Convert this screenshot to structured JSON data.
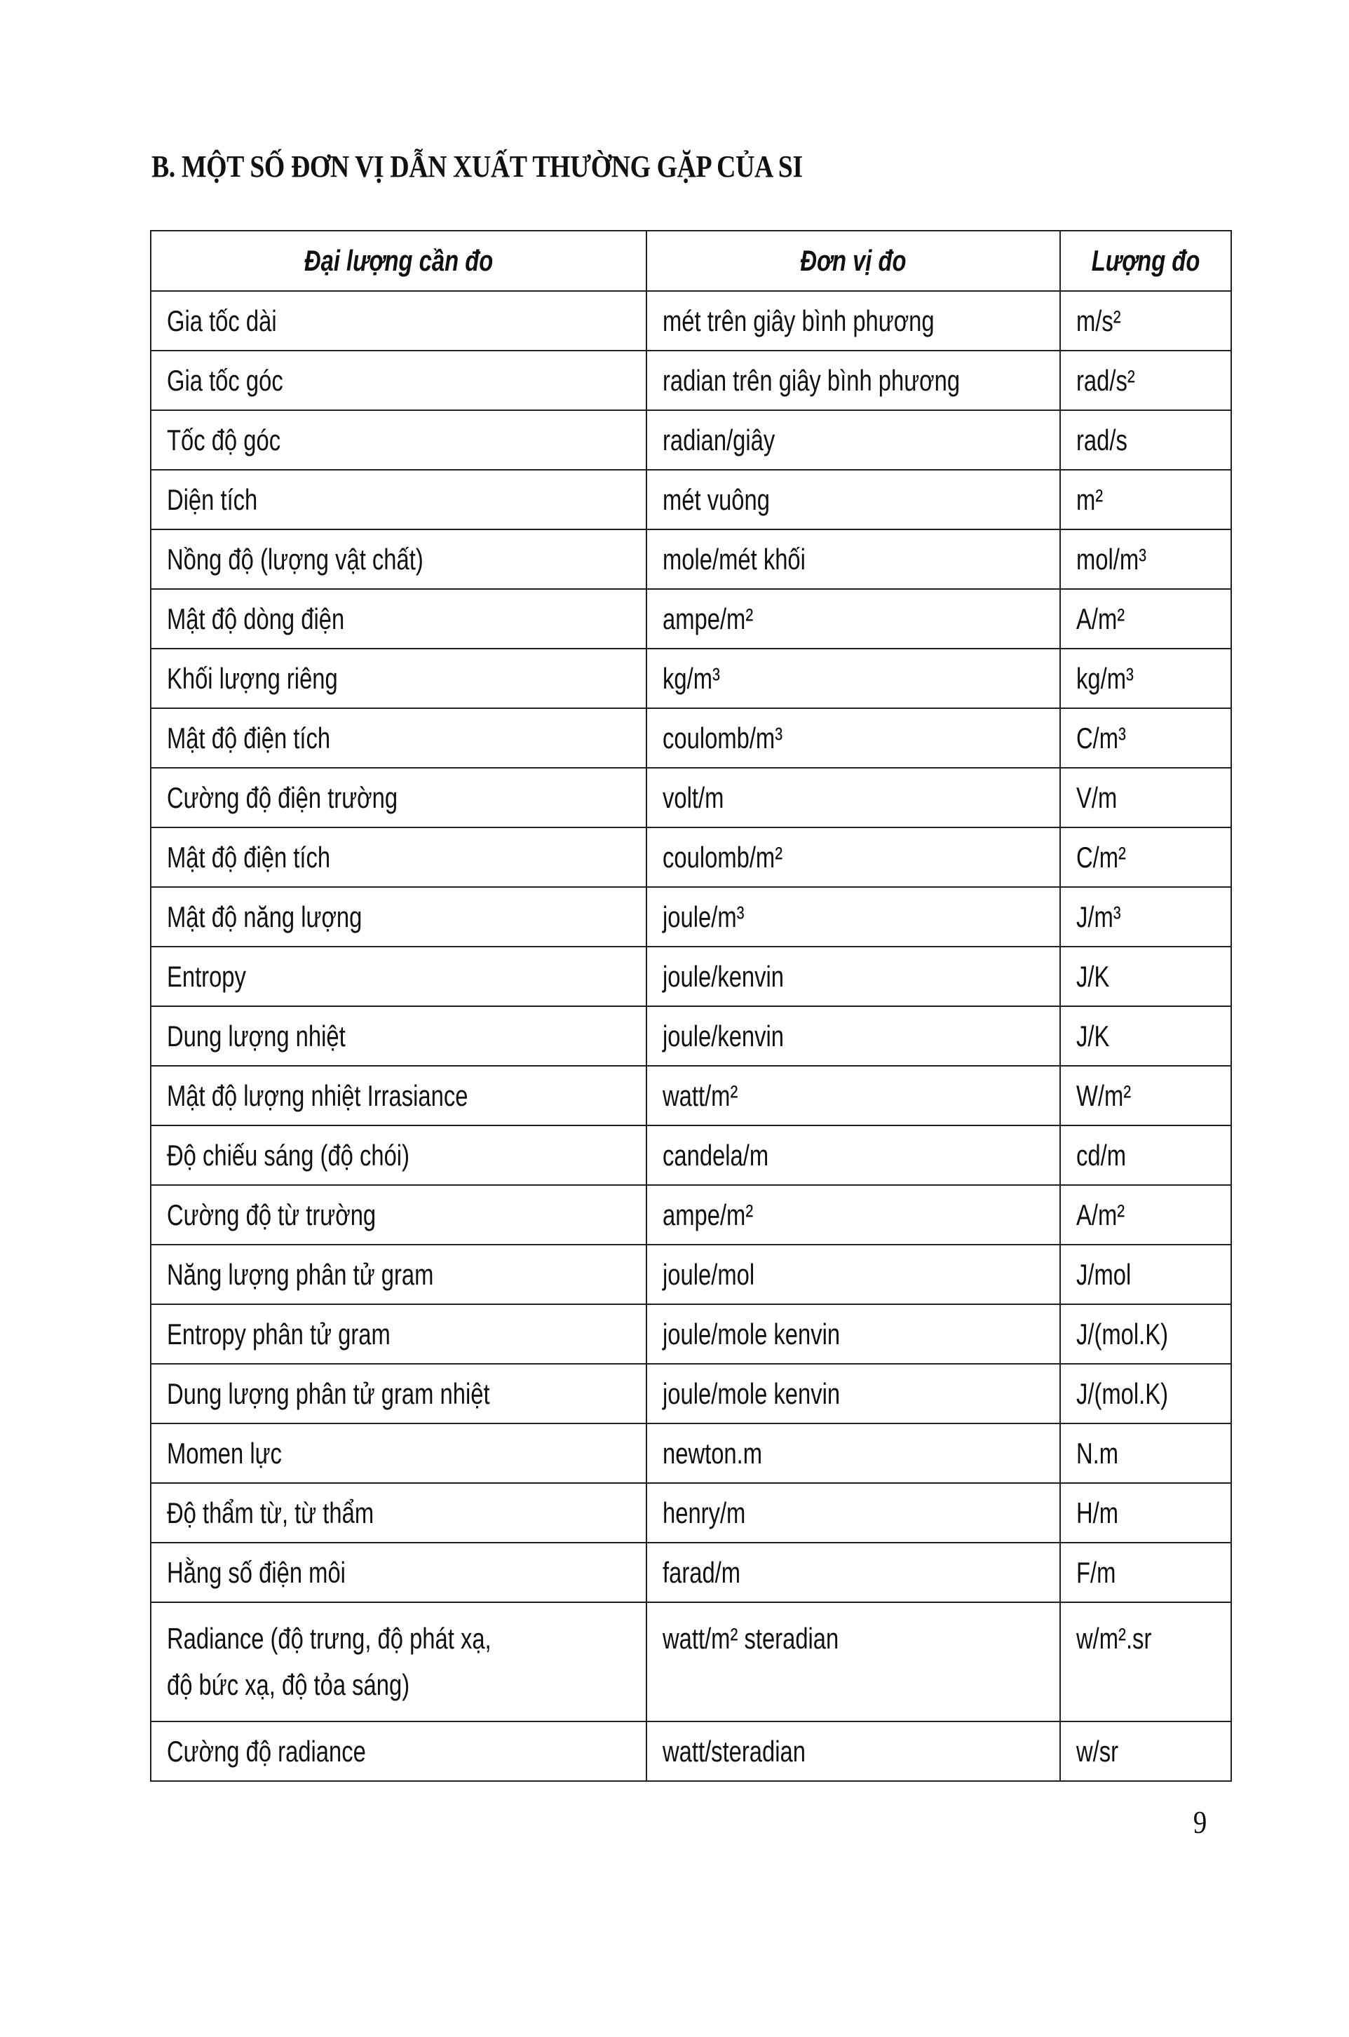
{
  "section_title": "B. MỘT SỐ ĐƠN VỊ DẪN XUẤT THƯỜNG GẶP CỦA SI",
  "table": {
    "headers": [
      "Đại lượng cần đo",
      "Đơn vị đo",
      "Lượng đo"
    ],
    "rows": [
      [
        "Gia tốc dài",
        "mét trên giây bình phương",
        "m/s²"
      ],
      [
        "Gia tốc góc",
        "radian trên giây bình phương",
        "rad/s²"
      ],
      [
        "Tốc độ góc",
        "radian/giây",
        "rad/s"
      ],
      [
        "Diện tích",
        "mét vuông",
        "m²"
      ],
      [
        "Nồng độ (lượng vật chất)",
        "mole/mét khối",
        "mol/m³"
      ],
      [
        "Mật độ dòng điện",
        "ampe/m²",
        "A/m²"
      ],
      [
        "Khối lượng riêng",
        "kg/m³",
        "kg/m³"
      ],
      [
        "Mật độ điện tích",
        "coulomb/m³",
        "C/m³"
      ],
      [
        "Cường độ điện trường",
        "volt/m",
        "V/m"
      ],
      [
        "Mật độ điện tích",
        "coulomb/m²",
        "C/m²"
      ],
      [
        "Mật độ năng lượng",
        "joule/m³",
        "J/m³"
      ],
      [
        "Entropy",
        "joule/kenvin",
        "J/K"
      ],
      [
        "Dung lượng nhiệt",
        "joule/kenvin",
        "J/K"
      ],
      [
        "Mật độ lượng nhiệt Irrasiance",
        "watt/m²",
        "W/m²"
      ],
      [
        "Độ chiếu sáng (độ chói)",
        "candela/m",
        "cd/m"
      ],
      [
        "Cường độ từ trường",
        "ampe/m²",
        "A/m²"
      ],
      [
        "Năng lượng phân tử gram",
        "joule/mol",
        "J/mol"
      ],
      [
        "Entropy phân tử gram",
        "joule/mole kenvin",
        "J/(mol.K)"
      ],
      [
        "Dung lượng phân tử gram nhiệt",
        "joule/mole kenvin",
        "J/(mol.K)"
      ],
      [
        "Momen lực",
        "newton.m",
        "N.m"
      ],
      [
        "Độ thẩm từ, từ thẩm",
        "henry/m",
        "H/m"
      ],
      [
        "Hằng số điện môi",
        "farad/m",
        "F/m"
      ],
      [
        [
          "Radiance (độ trưng, độ phát xạ,",
          "độ bức xạ, độ tỏa sáng)"
        ],
        "watt/m² steradian",
        "w/m².sr"
      ],
      [
        "Cường độ radiance",
        "watt/steradian",
        "w/sr"
      ]
    ]
  },
  "page_number": "9"
}
